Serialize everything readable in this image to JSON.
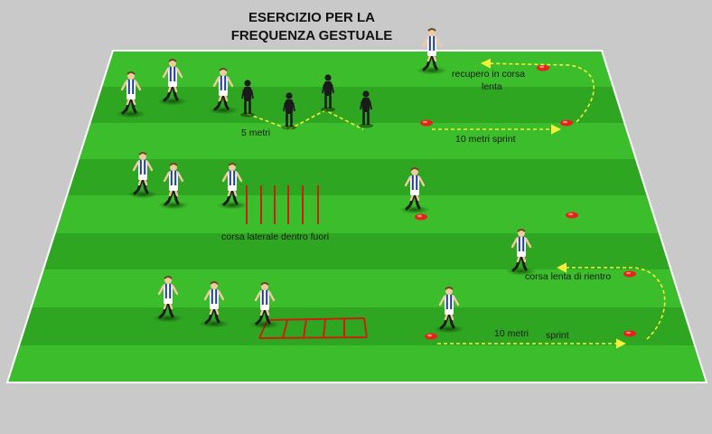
{
  "title": {
    "line1": "ESERCIZIO PER LA",
    "line2": "FREQUENZA GESTUALE"
  },
  "labels": {
    "five_metri": "5 metri",
    "recupero_line1": "recupero in corsa",
    "recupero_line2": "lenta",
    "dieci_metri_sprint": "10 metri sprint",
    "corsa_laterale": "corsa laterale dentro fuori",
    "corsa_lenta_rientro": "corsa lenta di rientro",
    "dieci_metri": "10 metri",
    "sprint": "sprint"
  },
  "colors": {
    "background": "#c9c9c9",
    "field_light": "#3cbd2b",
    "field_dark": "#2fa622",
    "field_line": "#ffffff",
    "cone": "#e8221b",
    "hurdle": "#cc1f10",
    "run_path": "#f4ef3a",
    "mannequin": "#1b1b1b",
    "jersey_stripe": "#1e3a9a",
    "shorts": "#ffffff"
  },
  "icons": [
    "player-icon",
    "cone-icon",
    "mannequin-icon",
    "hurdle-icon",
    "ladder-icon",
    "arrow-icon"
  ]
}
